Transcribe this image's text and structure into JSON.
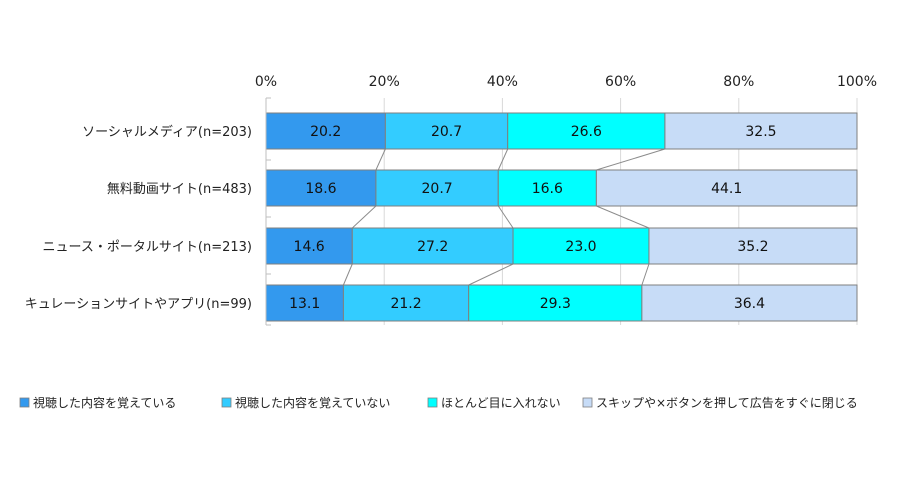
{
  "chart_data": {
    "type": "bar",
    "orientation": "horizontal",
    "stacked": true,
    "categories": [
      "ソーシャルメディア(n=203)",
      "無料動画サイト(n=483)",
      "ニュース・ポータルサイト(n=213)",
      "キュレーションサイトやアプリ(n=99)"
    ],
    "series": [
      {
        "name": "視聴した内容を覚えている",
        "values": [
          20.2,
          18.6,
          14.6,
          13.1
        ],
        "color": "#3399ee"
      },
      {
        "name": "視聴した内容を覚えていない",
        "values": [
          20.7,
          20.7,
          27.2,
          21.2
        ],
        "color": "#33ccff"
      },
      {
        "name": "ほとんど目に入れない",
        "values": [
          26.6,
          16.6,
          23.0,
          29.3
        ],
        "color": "#00ffff"
      },
      {
        "name": "スキップや×ボタンを押して広告をすぐに閉じる",
        "values": [
          32.5,
          44.1,
          35.2,
          36.4
        ],
        "color": "#c7dcf7"
      }
    ],
    "xlim": [
      0,
      100
    ],
    "xticks": [
      "0%",
      "20%",
      "40%",
      "60%",
      "80%",
      "100%"
    ],
    "xtick_values": [
      0,
      20,
      40,
      60,
      80,
      100
    ],
    "grid": true,
    "series_lines": true,
    "legend_position": "bottom"
  }
}
